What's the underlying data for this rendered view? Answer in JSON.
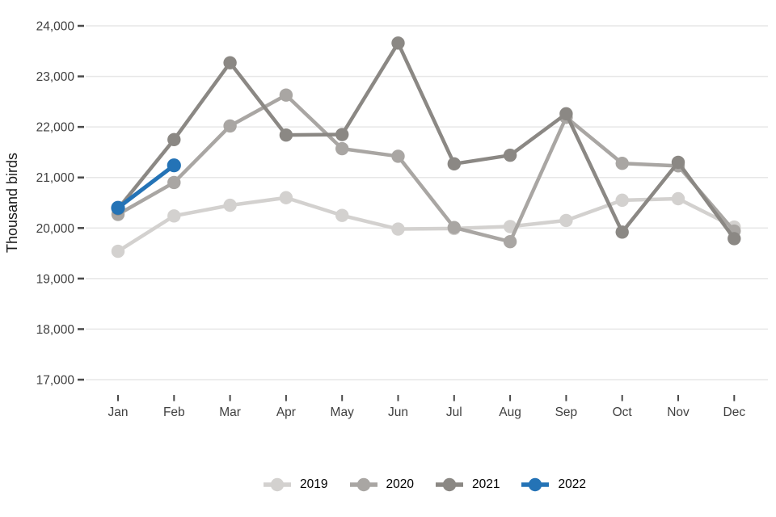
{
  "chart_data": {
    "type": "line",
    "title": "",
    "ylabel": "Thousand birds",
    "xlabel": "",
    "categories": [
      "Jan",
      "Feb",
      "Mar",
      "Apr",
      "May",
      "Jun",
      "Jul",
      "Aug",
      "Sep",
      "Oct",
      "Nov",
      "Dec"
    ],
    "y_ticks": [
      17000,
      18000,
      19000,
      20000,
      21000,
      22000,
      23000,
      24000
    ],
    "ylim": [
      17000,
      24000
    ],
    "grid": "horizontal",
    "legend_position": "bottom",
    "series": [
      {
        "name": "2019",
        "color": "#d3d1cf",
        "values": [
          19540,
          20240,
          20450,
          20600,
          20250,
          19980,
          19990,
          20030,
          20150,
          20550,
          20580,
          20020
        ]
      },
      {
        "name": "2020",
        "color": "#a9a6a3",
        "values": [
          20270,
          20900,
          22020,
          22630,
          21570,
          21420,
          20010,
          19730,
          22190,
          21280,
          21230,
          19940
        ]
      },
      {
        "name": "2021",
        "color": "#8b8884",
        "values": [
          20380,
          21750,
          23270,
          21840,
          21850,
          23660,
          21270,
          21440,
          22260,
          19920,
          21300,
          19790
        ]
      },
      {
        "name": "2022",
        "color": "#2473b6",
        "values": [
          20400,
          21240,
          null,
          null,
          null,
          null,
          null,
          null,
          null,
          null,
          null,
          null
        ]
      }
    ]
  },
  "colors": {
    "background": "#ffffff",
    "grid": "#e7e7e7",
    "axis_text": "#404040",
    "axis_tick": "#4a4a4a",
    "ylabel_text": "#1a1a1a",
    "legend_text": "#000000"
  }
}
